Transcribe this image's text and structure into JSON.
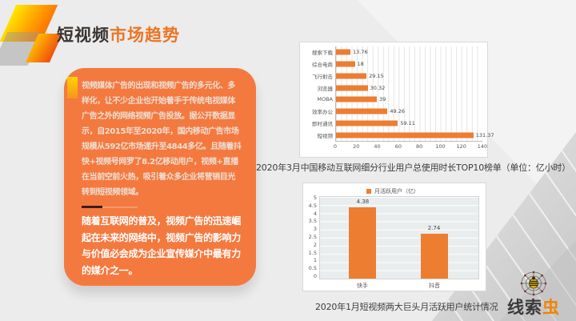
{
  "slide": {
    "title": {
      "part_dark": "短视频",
      "part_orange": "市场趋势"
    },
    "left_panel": {
      "paragraph1": "视频媒体广告的出现和视频广告的多元化、多样化，让不少企业也开始着手于传统电视媒体广告之外的网络视频广告投放。据公开数据显示，自2015年至2020年，国内移动广告市场规模从592亿市场递升至4844多亿。且随着抖快+视频号网罗了8.2亿移动用户，视频+直播在当前空前火热，吸引着众多企业将营销目光转到短视频领域。",
      "paragraph2": "随着互联网的普及，视频广告的迅速崛起在未来的网络中，视频广告的影响力与价值必会成为企业宣传媒介中最有力的媒介之一。"
    },
    "captions": {
      "chart1": "2020年3月中国移动互联网细分行业用户总使用时长TOP10榜单（单位：亿小时）",
      "chart2": "2020年1月短视频两大巨头月活跃用户统计情况"
    },
    "logo": {
      "icon": "spider-web-bug-icon",
      "text_dark": "线索",
      "text_orange": "虫"
    }
  },
  "colors": {
    "accent_orange": "#ed7d31",
    "panel_orange": "#f4793f",
    "title_orange": "#ed7422",
    "background": "#ececec"
  },
  "chart_data": [
    {
      "type": "bar",
      "orientation": "horizontal",
      "categories": [
        "搜索下载",
        "综合电商",
        "飞行射击",
        "浏览器",
        "MOBA",
        "效率办公",
        "即时通讯",
        "短视频"
      ],
      "values": [
        13.76,
        18,
        29.15,
        30.32,
        39,
        49.26,
        59.11,
        131.37
      ],
      "value_labels": [
        "13.76",
        "18",
        "29.15",
        "30.32",
        "39",
        "49.26",
        "59.11",
        "131.37"
      ],
      "xlim": [
        0,
        140
      ],
      "x_ticks": [
        "0",
        "20",
        "40",
        "60",
        "80",
        "100",
        "120",
        "140"
      ],
      "grid": "vertical-minor-on",
      "legend_position": "none",
      "bar_color": "#ed7d31",
      "title": "2020年3月中国移动互联网细分行业用户总使用时长TOP10榜单（单位：亿小时）"
    },
    {
      "type": "bar",
      "orientation": "vertical",
      "categories": [
        "快手",
        "抖音"
      ],
      "values": [
        4.38,
        2.74
      ],
      "value_labels": [
        "4.38",
        "2.74"
      ],
      "ylim": [
        0,
        5
      ],
      "y_ticks": [
        "5",
        "4.5",
        "4",
        "3.5",
        "3",
        "2.5",
        "2",
        "1.5",
        "1",
        "0.5",
        "0"
      ],
      "grid": "horizontal-on",
      "legend": "月活跃用户（亿）",
      "legend_position": "top",
      "bar_color": "#ed7d31",
      "title": "2020年1月短视频两大巨头月活跃用户统计情况"
    }
  ]
}
